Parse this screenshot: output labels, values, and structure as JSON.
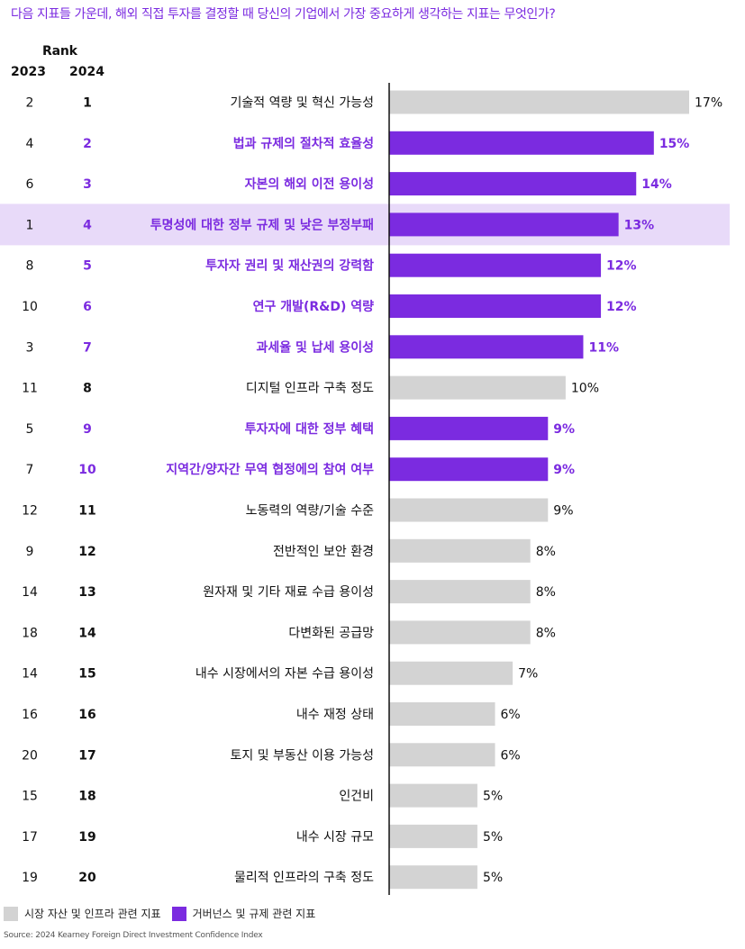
{
  "question": "다음 지표들 가운데, 해외 직접 투자를 결정할 때 당신의 기업에서 가장 중요하게 생각하는 지표는 무엇인가?",
  "rank_header": {
    "title": "Rank",
    "year_prev": "2023",
    "year_curr": "2024"
  },
  "colors": {
    "market": "#D3D3D3",
    "governance": "#7B2BE0",
    "highlight_row": "#E8DAF9",
    "purple_text": "#7B2BE0"
  },
  "legend": {
    "market": "시장 자산 및 인프라 관련 지표",
    "governance": "거버넌스 및 규제 관련 지표"
  },
  "source": "Source: 2024 Kearney Foreign Direct Investment Confidence Index",
  "chart_data": {
    "type": "bar",
    "orientation": "horizontal",
    "unit": "%",
    "xlim": [
      0,
      17
    ],
    "highlighted_category": "투명성에 대한 정부 규제 및 낮은 부정부패",
    "categories": [
      "기술적 역량 및 혁신 가능성",
      "법과 규제의 절차적 효율성",
      "자본의 해외 이전 용이성",
      "투명성에 대한 정부 규제 및 낮은 부정부패",
      "투자자 권리 및 재산권의 강력함",
      "연구 개발(R&D) 역량",
      "과세율 및 납세 용이성",
      "디지털 인프라 구축 정도",
      "투자자에 대한 정부 혜택",
      "지역간/양자간 무역 협정에의 참여 여부",
      "노동력의 역량/기술 수준",
      "전반적인 보안 환경",
      "원자재 및 기타 재료 수급 용이성",
      "다변화된 공급망",
      "내수 시장에서의 자본 수급 용이성",
      "내수 재정 상태",
      "토지 및 부동산 이용 가능성",
      "인건비",
      "내수 시장 규모",
      "물리적 인프라의 구축 정도"
    ],
    "values": [
      17,
      15,
      14,
      13,
      12,
      12,
      11,
      10,
      9,
      9,
      9,
      8,
      8,
      8,
      7,
      6,
      6,
      5,
      5,
      5
    ],
    "value_labels": [
      "17%",
      "15%",
      "14%",
      "13%",
      "12%",
      "12%",
      "11%",
      "10%",
      "9%",
      "9%",
      "9%",
      "8%",
      "8%",
      "8%",
      "7%",
      "6%",
      "6%",
      "5%",
      "5%",
      "5%"
    ],
    "group": [
      "market",
      "governance",
      "governance",
      "governance",
      "governance",
      "governance",
      "governance",
      "market",
      "governance",
      "governance",
      "market",
      "market",
      "market",
      "market",
      "market",
      "market",
      "market",
      "market",
      "market",
      "market"
    ],
    "rank_2023": [
      "2",
      "4",
      "6",
      "1",
      "8",
      "10",
      "3",
      "11",
      "5",
      "7",
      "12",
      "9",
      "14",
      "18",
      "14",
      "16",
      "20",
      "15",
      "17",
      "19"
    ],
    "rank_2024": [
      "1",
      "2",
      "3",
      "4",
      "5",
      "6",
      "7",
      "8",
      "9",
      "10",
      "11",
      "12",
      "13",
      "14",
      "15",
      "16",
      "17",
      "18",
      "19",
      "20"
    ]
  }
}
